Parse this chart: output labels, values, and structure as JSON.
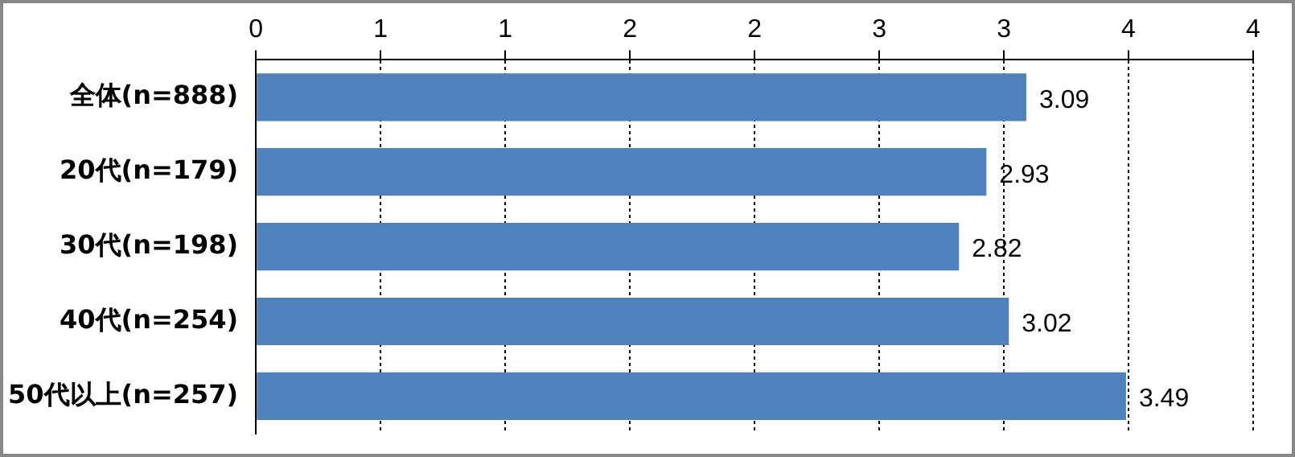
{
  "chart_data": {
    "type": "bar",
    "orientation": "horizontal",
    "categories": [
      "全体(n=888)",
      "20代(n=179)",
      "30代(n=198)",
      "40代(n=254)",
      "50代以上(n=257)"
    ],
    "values": [
      3.09,
      2.93,
      2.82,
      3.02,
      3.49
    ],
    "color": "#4f81bd",
    "xlim": [
      0,
      4
    ],
    "xticks": [
      0,
      {
        "value": 0.5,
        "label": "1"
      },
      1,
      {
        "value": 1.5,
        "label": "2"
      },
      2,
      {
        "value": 2.5,
        "label": "3"
      },
      3,
      {
        "value": 3.5,
        "label": "4"
      },
      4
    ],
    "grid": "x",
    "legend": false,
    "data_labels": true
  }
}
